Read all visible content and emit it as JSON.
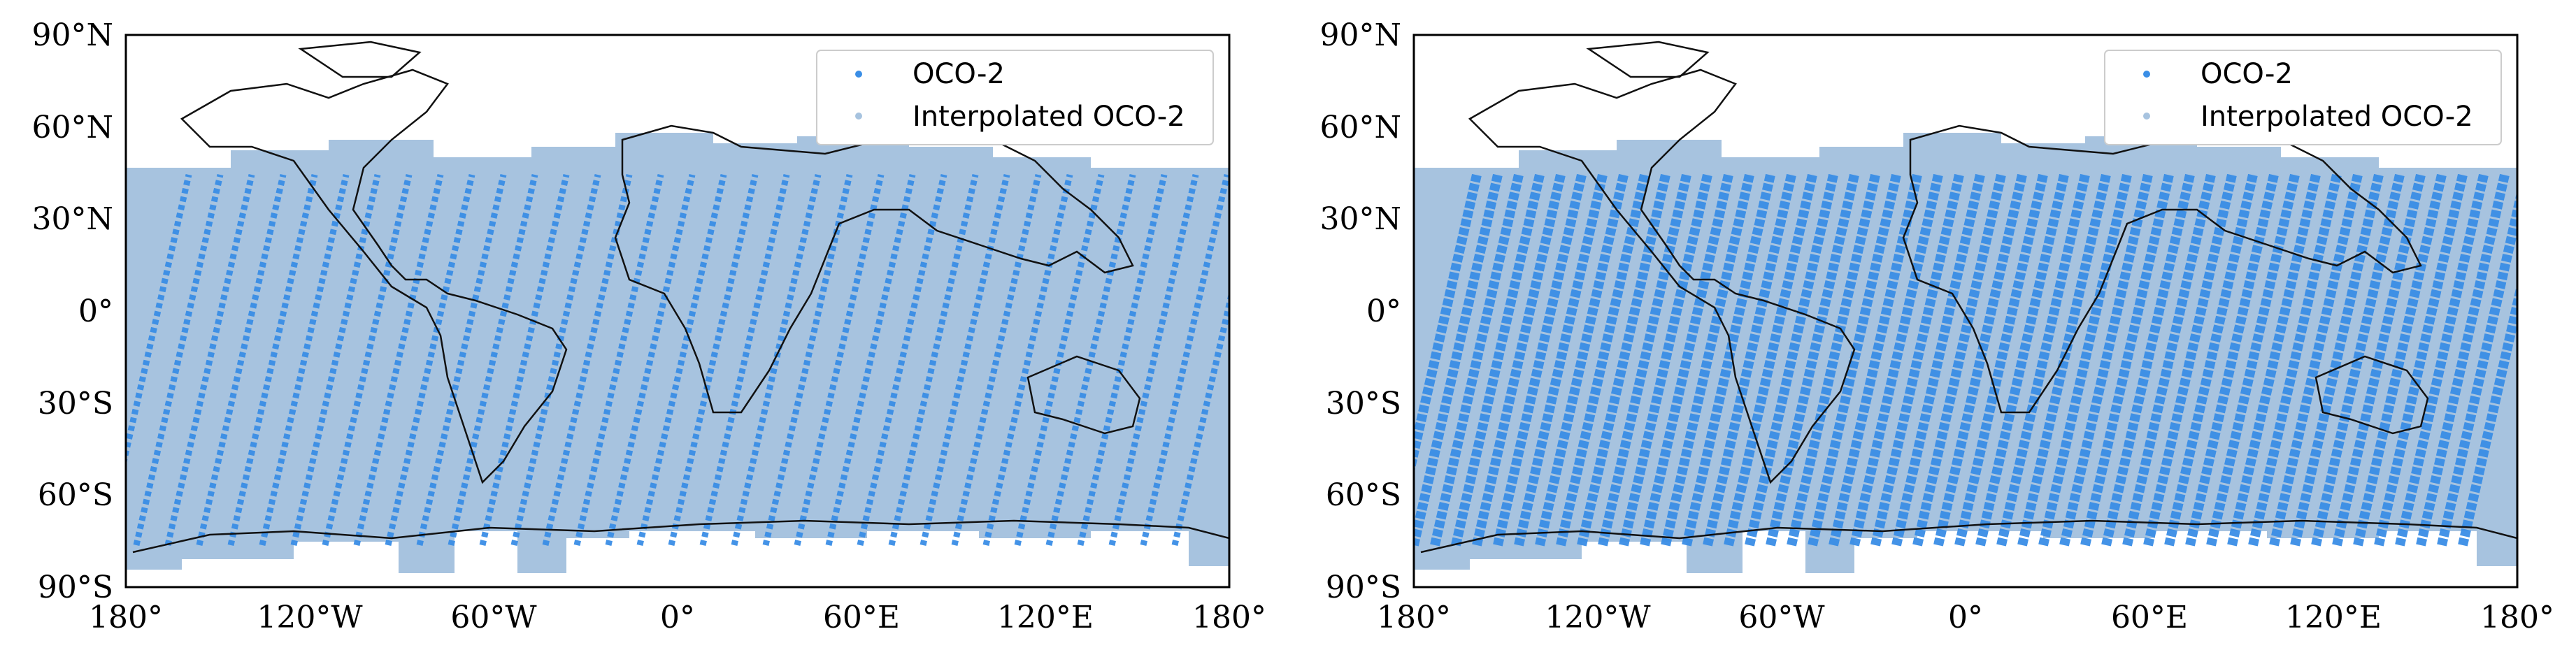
{
  "maps": [
    {
      "id": "left",
      "legend": {
        "items": [
          {
            "label": "OCO-2",
            "color": "#3a8ee6"
          },
          {
            "label": "Interpolated OCO-2",
            "color": "#a7c3df"
          }
        ]
      },
      "lat_ticks": [
        "90°N",
        "60°N",
        "30°N",
        "0°",
        "30°S",
        "60°S",
        "90°S"
      ],
      "lon_ticks": [
        "180°",
        "120°W",
        "60°W",
        "0°",
        "60°E",
        "120°E",
        "180°"
      ]
    },
    {
      "id": "right",
      "legend": {
        "items": [
          {
            "label": "OCO-2",
            "color": "#3a8ee6"
          },
          {
            "label": "Interpolated OCO-2",
            "color": "#a7c3df"
          }
        ]
      },
      "lat_ticks": [
        "90°N",
        "60°N",
        "30°N",
        "0°",
        "30°S",
        "60°S",
        "90°S"
      ],
      "lon_ticks": [
        "180°",
        "120°W",
        "60°W",
        "0°",
        "60°E",
        "120°E",
        "180°"
      ]
    }
  ],
  "colors": {
    "oco2": "#3a8ee6",
    "interpolated": "#a7c3df",
    "coast": "#111111",
    "frame": "#000000"
  }
}
